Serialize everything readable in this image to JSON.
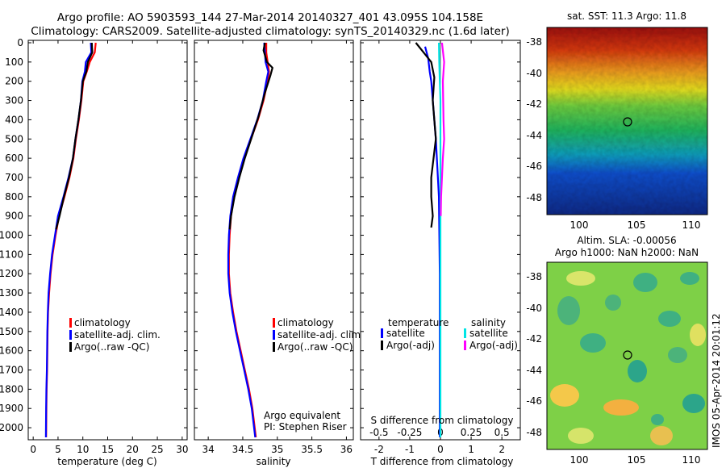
{
  "header": {
    "line1": "Argo profile: AO 5903593_144 27-Mar-2014 20140327_401 43.095S 104.158E",
    "line2": "Climatology: CARS2009. Satellite-adjusted climatology: synTS_20140329.nc (1.6d later)"
  },
  "side_stamp": "IMOS 05-Apr-2014 20:01:12",
  "colors": {
    "climatology": "#ff0000",
    "satellite": "#0000ff",
    "argo": "#000000",
    "sal_satellite": "#00e5e5",
    "sal_argo": "#ff00ff"
  },
  "chart_data": [
    {
      "type": "line",
      "xlabel": "temperature (deg C)",
      "xlim": [
        -1,
        31
      ],
      "xticks": [
        0,
        5,
        10,
        15,
        20,
        25,
        30
      ],
      "ylim": [
        0,
        2050
      ],
      "yticks": [
        0,
        100,
        200,
        300,
        400,
        500,
        600,
        700,
        800,
        900,
        1000,
        1100,
        1200,
        1300,
        1400,
        1500,
        1600,
        1700,
        1800,
        1900,
        2000
      ],
      "y_reversed": true,
      "legend": [
        "climatology",
        "satellite-adj. clim.",
        "Argo(..raw -QC)"
      ],
      "series": [
        {
          "name": "climatology",
          "points": [
            [
              12.6,
              0
            ],
            [
              12.4,
              50
            ],
            [
              11.4,
              100
            ],
            [
              10.8,
              150
            ],
            [
              10.1,
              200
            ],
            [
              9.7,
              300
            ],
            [
              9.2,
              400
            ],
            [
              8.6,
              500
            ],
            [
              8.1,
              600
            ],
            [
              7.3,
              700
            ],
            [
              6.3,
              800
            ],
            [
              5.2,
              900
            ],
            [
              4.5,
              1000
            ],
            [
              3.9,
              1100
            ],
            [
              3.5,
              1200
            ],
            [
              3.2,
              1300
            ],
            [
              3.0,
              1400
            ],
            [
              2.9,
              1500
            ],
            [
              2.85,
              1600
            ],
            [
              2.8,
              1700
            ],
            [
              2.7,
              1800
            ],
            [
              2.65,
              1900
            ],
            [
              2.6,
              2050
            ]
          ]
        },
        {
          "name": "satellite-adj. clim.",
          "points": [
            [
              11.6,
              0
            ],
            [
              11.7,
              50
            ],
            [
              10.6,
              100
            ],
            [
              10.4,
              150
            ],
            [
              9.9,
              200
            ],
            [
              9.6,
              300
            ],
            [
              9.1,
              400
            ],
            [
              8.5,
              500
            ],
            [
              8.0,
              600
            ],
            [
              7.1,
              700
            ],
            [
              6.1,
              800
            ],
            [
              5.0,
              900
            ],
            [
              4.4,
              1000
            ],
            [
              3.8,
              1100
            ],
            [
              3.4,
              1200
            ],
            [
              3.1,
              1300
            ],
            [
              2.95,
              1400
            ],
            [
              2.85,
              1500
            ],
            [
              2.8,
              1600
            ],
            [
              2.75,
              1700
            ],
            [
              2.65,
              1800
            ],
            [
              2.6,
              1900
            ],
            [
              2.55,
              2050
            ]
          ]
        },
        {
          "name": "Argo(..raw -QC)",
          "points": [
            [
              11.8,
              0
            ],
            [
              11.9,
              50
            ],
            [
              11.0,
              100
            ],
            [
              10.7,
              150
            ],
            [
              10.0,
              200
            ],
            [
              9.6,
              300
            ],
            [
              9.1,
              400
            ],
            [
              8.5,
              500
            ],
            [
              8.0,
              600
            ],
            [
              7.2,
              700
            ],
            [
              6.2,
              800
            ],
            [
              5.3,
              900
            ],
            [
              4.6,
              970
            ]
          ]
        }
      ]
    },
    {
      "type": "line",
      "xlabel": "salinity",
      "xlim": [
        33.8,
        36.1
      ],
      "xticks": [
        34,
        34.5,
        35,
        35.5,
        36
      ],
      "xtick_labels": [
        "34",
        "34.5",
        "35",
        "35.5",
        "36"
      ],
      "ylim": [
        0,
        2050
      ],
      "y_reversed": true,
      "legend": [
        "climatology",
        "satellite-adj. clim.",
        "Argo(..raw -QC)"
      ],
      "annotation": [
        "Argo equivalent",
        "PI: Stephen Riser"
      ],
      "series": [
        {
          "name": "climatology",
          "points": [
            [
              34.84,
              0
            ],
            [
              34.84,
              50
            ],
            [
              34.86,
              100
            ],
            [
              34.88,
              150
            ],
            [
              34.86,
              200
            ],
            [
              34.8,
              300
            ],
            [
              34.72,
              400
            ],
            [
              34.62,
              500
            ],
            [
              34.52,
              600
            ],
            [
              34.44,
              700
            ],
            [
              34.37,
              800
            ],
            [
              34.33,
              900
            ],
            [
              34.31,
              1000
            ],
            [
              34.3,
              1100
            ],
            [
              34.3,
              1200
            ],
            [
              34.32,
              1300
            ],
            [
              34.36,
              1400
            ],
            [
              34.41,
              1500
            ],
            [
              34.47,
              1600
            ],
            [
              34.53,
              1700
            ],
            [
              34.59,
              1800
            ],
            [
              34.64,
              1900
            ],
            [
              34.69,
              2050
            ]
          ]
        },
        {
          "name": "satellite-adj. clim.",
          "points": [
            [
              34.81,
              0
            ],
            [
              34.82,
              50
            ],
            [
              34.83,
              100
            ],
            [
              34.87,
              150
            ],
            [
              34.84,
              200
            ],
            [
              34.79,
              300
            ],
            [
              34.71,
              400
            ],
            [
              34.61,
              500
            ],
            [
              34.51,
              600
            ],
            [
              34.43,
              700
            ],
            [
              34.36,
              800
            ],
            [
              34.32,
              900
            ],
            [
              34.3,
              1000
            ],
            [
              34.29,
              1100
            ],
            [
              34.29,
              1200
            ],
            [
              34.31,
              1300
            ],
            [
              34.35,
              1400
            ],
            [
              34.4,
              1500
            ],
            [
              34.46,
              1600
            ],
            [
              34.52,
              1700
            ],
            [
              34.58,
              1800
            ],
            [
              34.63,
              1900
            ],
            [
              34.68,
              2050
            ]
          ]
        },
        {
          "name": "Argo(..raw -QC)",
          "points": [
            [
              34.82,
              0
            ],
            [
              34.8,
              40
            ],
            [
              34.85,
              100
            ],
            [
              34.93,
              130
            ],
            [
              34.9,
              170
            ],
            [
              34.82,
              260
            ],
            [
              34.73,
              380
            ],
            [
              34.63,
              490
            ],
            [
              34.53,
              600
            ],
            [
              34.45,
              700
            ],
            [
              34.38,
              800
            ],
            [
              34.33,
              900
            ],
            [
              34.31,
              970
            ]
          ]
        }
      ]
    },
    {
      "type": "line",
      "xlabel": "T difference from climatology",
      "xlim": [
        -2.6,
        2.6
      ],
      "xticks": [
        -2,
        -1,
        0,
        1,
        2
      ],
      "x2label": "S difference from climatology",
      "x2ticks": [
        -0.5,
        -0.25,
        0,
        0.25,
        0.5
      ],
      "x2tick_labels": [
        "-0.5",
        "-0.25",
        "0",
        "0.25",
        "0.5"
      ],
      "ylim": [
        0,
        2050
      ],
      "y_reversed": true,
      "legend_headers": [
        "temperature",
        "salinity"
      ],
      "legend": [
        "satellite",
        "Argo(-adj)",
        "satellite",
        "Argo(-adj)"
      ],
      "series": [
        {
          "name": "temperature satellite",
          "points": [
            [
              -0.5,
              20
            ],
            [
              -0.4,
              80
            ],
            [
              -0.35,
              150
            ],
            [
              -0.3,
              200
            ],
            [
              -0.25,
              300
            ],
            [
              -0.15,
              500
            ],
            [
              -0.05,
              800
            ],
            [
              -0.02,
              1200
            ],
            [
              -0.02,
              2050
            ]
          ]
        },
        {
          "name": "temperature Argo(-adj)",
          "points": [
            [
              -0.8,
              0
            ],
            [
              -0.5,
              60
            ],
            [
              -0.3,
              100
            ],
            [
              -0.2,
              180
            ],
            [
              -0.25,
              300
            ],
            [
              -0.15,
              500
            ],
            [
              -0.3,
              700
            ],
            [
              -0.3,
              800
            ],
            [
              -0.25,
              900
            ],
            [
              -0.3,
              960
            ]
          ]
        },
        {
          "name": "salinity satellite",
          "points": [
            [
              -0.05,
              0
            ],
            [
              -0.04,
              100
            ],
            [
              -0.02,
              200
            ],
            [
              0,
              300
            ],
            [
              0,
              2050
            ]
          ]
        },
        {
          "name": "salinity Argo(-adj)",
          "points": [
            [
              0.05,
              0
            ],
            [
              0.12,
              100
            ],
            [
              0.08,
              200
            ],
            [
              0.1,
              400
            ],
            [
              0.12,
              500
            ],
            [
              0.08,
              600
            ],
            [
              0.05,
              700
            ],
            [
              0.02,
              800
            ],
            [
              0.01,
              900
            ]
          ]
        }
      ]
    }
  ],
  "maps": {
    "sst": {
      "title": "sat. SST: 11.3 Argo: 11.8",
      "yticks": [
        "-38",
        "-40",
        "-42",
        "-44",
        "-46",
        "-48"
      ],
      "xticks": [
        "100",
        "105",
        "110"
      ],
      "marker": "argo-position-circle"
    },
    "sla": {
      "title_line1": "Altim. SLA: -0.00056",
      "title_line2": "Argo h1000: NaN h2000: NaN",
      "yticks": [
        "-38",
        "-40",
        "-42",
        "-44",
        "-46",
        "-48"
      ],
      "xticks": [
        "100",
        "105",
        "110"
      ],
      "marker": "argo-position-circle"
    }
  }
}
